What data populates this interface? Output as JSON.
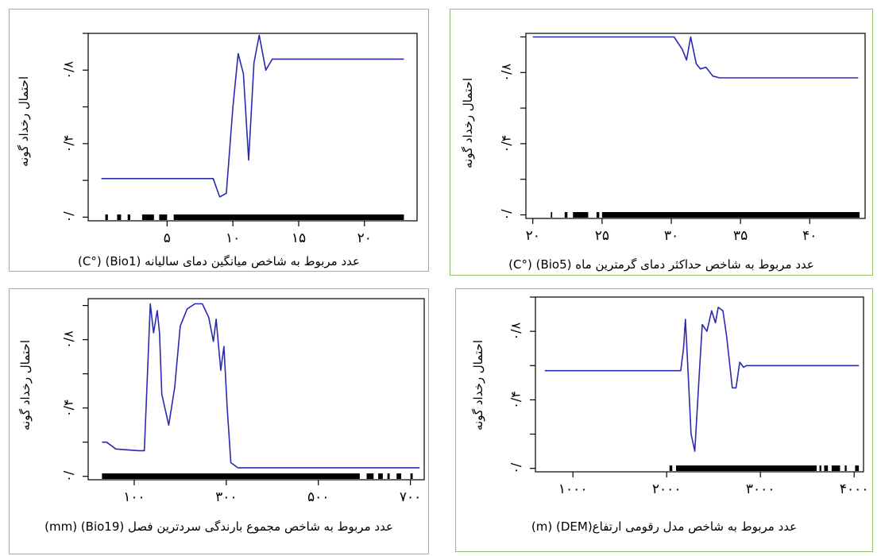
{
  "chart_data": [
    {
      "id": "bio1",
      "type": "line",
      "ylabel": "احتمال رخداد گونه",
      "xlabel": "عدد مربوط به شاخص میانگین دمای سالیانه (Bio1) (°C)",
      "xlim": [
        -1,
        24
      ],
      "ylim": [
        -0.02,
        1.0
      ],
      "xticks": [
        5,
        10,
        15,
        20
      ],
      "xtick_labels": [
        "۵",
        "۱۰",
        "۱۵",
        "۲۰"
      ],
      "yticks": [
        0,
        0.4,
        0.8
      ],
      "ytick_labels": [
        "۰/",
        "۰/۴",
        "۰/۸"
      ],
      "x": [
        0,
        8.5,
        9.0,
        9.5,
        10.0,
        10.4,
        10.8,
        11.2,
        11.6,
        12.0,
        12.5,
        13.0,
        13.5,
        23
      ],
      "y": [
        0.21,
        0.21,
        0.11,
        0.13,
        0.6,
        0.89,
        0.78,
        0.31,
        0.84,
        0.99,
        0.8,
        0.86,
        0.86,
        0.86
      ],
      "rug": [
        [
          0.3,
          0.5
        ],
        [
          1.2,
          1.5
        ],
        [
          2.0,
          2.2
        ],
        [
          3.1,
          4.0
        ],
        [
          4.4,
          5.0
        ],
        [
          5.5,
          23.0
        ]
      ]
    },
    {
      "id": "bio5",
      "type": "line",
      "ylabel": "احتمال رخداد گونه",
      "xlabel": "عدد مربوط به شاخص حداکثر دمای گرمترین ماه (Bio5) (°C)",
      "xlim": [
        19.5,
        44
      ],
      "ylim": [
        -0.02,
        1.02
      ],
      "xticks": [
        20,
        25,
        30,
        35,
        40
      ],
      "xtick_labels": [
        "۲۰",
        "۲۵",
        "۳۰",
        "۳۵",
        "۴۰"
      ],
      "yticks": [
        0,
        0.4,
        0.8
      ],
      "ytick_labels": [
        "۰/",
        "۰/۴",
        "۰/۸"
      ],
      "x": [
        20,
        30.2,
        30.8,
        31.1,
        31.4,
        31.8,
        32.1,
        32.5,
        33.0,
        33.5,
        43.5
      ],
      "y": [
        1.0,
        1.0,
        0.93,
        0.87,
        1.0,
        0.85,
        0.82,
        0.83,
        0.78,
        0.77,
        0.77
      ],
      "rug": [
        [
          21.3,
          21.4
        ],
        [
          22.3,
          22.5
        ],
        [
          22.9,
          24.0
        ],
        [
          24.6,
          24.8
        ],
        [
          25.0,
          43.6
        ]
      ]
    },
    {
      "id": "bio19",
      "type": "line",
      "ylabel": "احتمال رخداد گونه",
      "xlabel": "عدد مربوط به شاخص مجموع بارندگی سردترین فصل (Bio19) (mm)",
      "xlim": [
        0,
        730
      ],
      "ylim": [
        -0.02,
        1.04
      ],
      "xticks": [
        100,
        300,
        500,
        700
      ],
      "xtick_labels": [
        "۱۰۰",
        "۳۰۰",
        "۵۰۰",
        "۷۰۰"
      ],
      "yticks": [
        0,
        0.4,
        0.8
      ],
      "ytick_labels": [
        "۰/",
        "۰/۴",
        "۰/۸"
      ],
      "x": [
        30,
        40,
        60,
        110,
        122,
        135,
        142,
        150,
        155,
        160,
        175,
        188,
        200,
        215,
        232,
        248,
        262,
        272,
        278,
        288,
        295,
        302,
        310,
        325,
        340,
        720
      ],
      "y": [
        0.2,
        0.2,
        0.16,
        0.15,
        0.15,
        1.01,
        0.84,
        0.97,
        0.84,
        0.48,
        0.3,
        0.52,
        0.88,
        0.98,
        1.01,
        1.01,
        0.93,
        0.79,
        0.92,
        0.62,
        0.76,
        0.4,
        0.08,
        0.05,
        0.05,
        0.05
      ],
      "rug": [
        [
          30,
          590
        ],
        [
          605,
          620
        ],
        [
          630,
          640
        ],
        [
          650,
          655
        ],
        [
          670,
          680
        ],
        [
          700,
          705
        ]
      ]
    },
    {
      "id": "dem",
      "type": "line",
      "ylabel": "احتمال رخداد گونه",
      "xlabel": "عدد مربوط به شاخص مدل رقومی ارتفاع(DEM) (m)",
      "xlim": [
        600,
        4100
      ],
      "ylim": [
        -0.02,
        1.0
      ],
      "xticks": [
        1000,
        2000,
        3000,
        4000
      ],
      "xtick_labels": [
        "۱۰۰۰",
        "۲۰۰۰",
        "۳۰۰۰",
        "۴۰۰۰"
      ],
      "yticks": [
        0,
        0.4,
        0.8
      ],
      "ytick_labels": [
        "۰/",
        "۰/۴",
        "۰/۸"
      ],
      "x": [
        700,
        2150,
        2180,
        2200,
        2230,
        2260,
        2300,
        2350,
        2380,
        2430,
        2480,
        2520,
        2550,
        2600,
        2640,
        2700,
        2740,
        2780,
        2820,
        2850,
        4050
      ],
      "y": [
        0.57,
        0.57,
        0.7,
        0.87,
        0.55,
        0.2,
        0.1,
        0.57,
        0.84,
        0.8,
        0.92,
        0.85,
        0.94,
        0.92,
        0.77,
        0.47,
        0.47,
        0.62,
        0.59,
        0.6,
        0.6
      ],
      "rug": [
        [
          2030,
          2060
        ],
        [
          2100,
          3600
        ],
        [
          3630,
          3650
        ],
        [
          3680,
          3720
        ],
        [
          3760,
          3850
        ],
        [
          3900,
          3920
        ],
        [
          4010,
          4050
        ]
      ]
    }
  ],
  "style": {
    "line_color": "#2a2ab0",
    "border_color": "#8fbf6f",
    "rug_color": "#000000"
  }
}
